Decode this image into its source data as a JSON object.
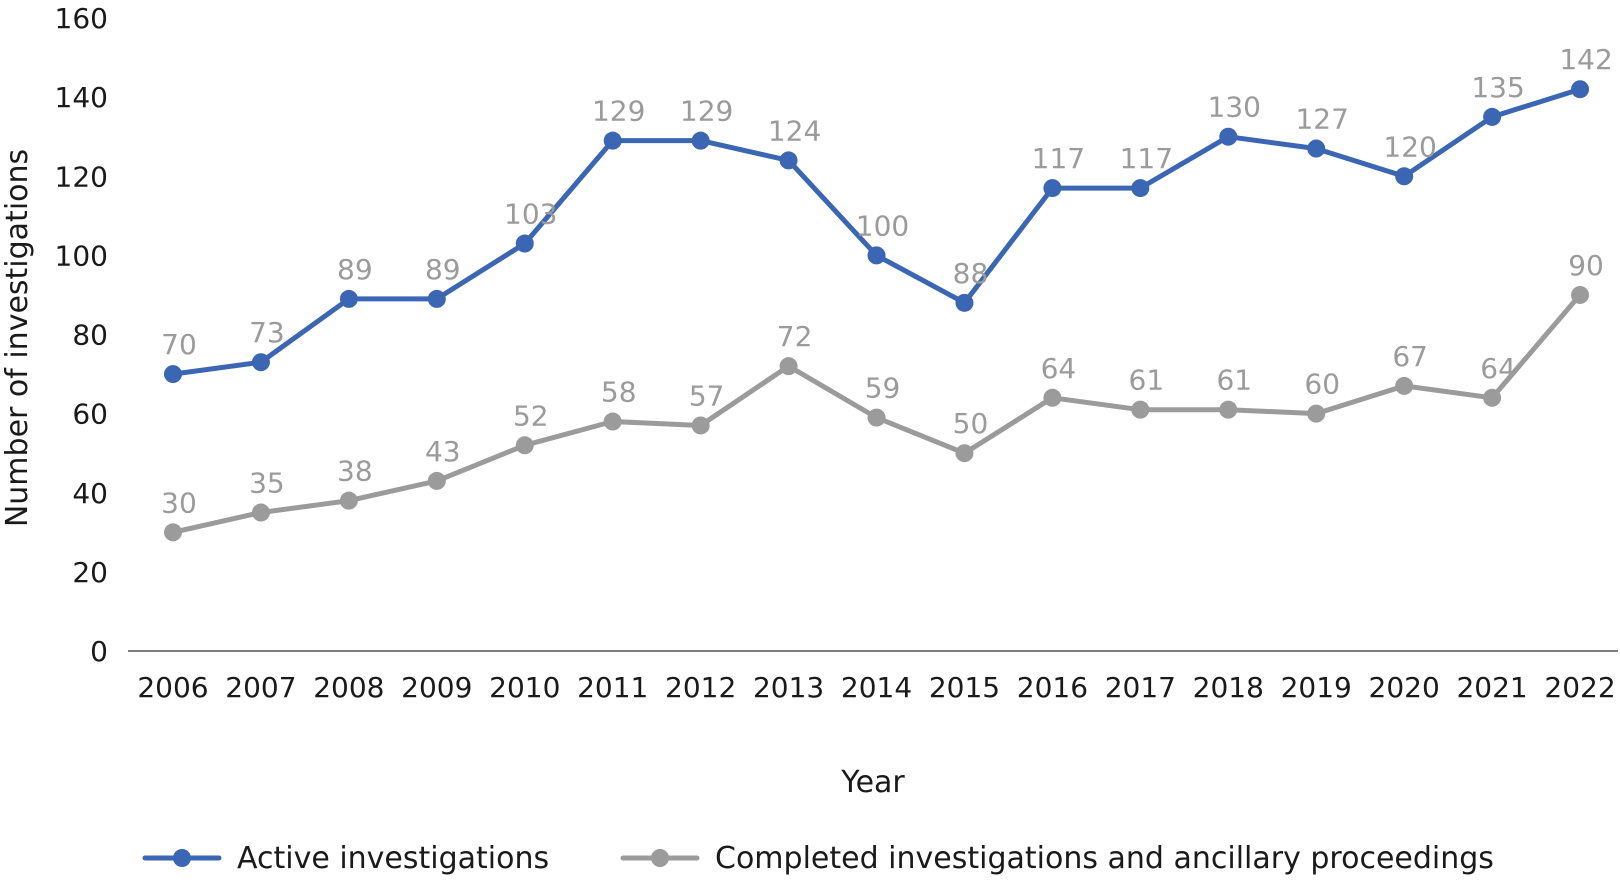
{
  "chart_data": {
    "type": "line",
    "xlabel": "Year",
    "ylabel": "Number of investigations",
    "ylim": [
      0,
      160
    ],
    "yticks": [
      0,
      20,
      40,
      60,
      80,
      100,
      120,
      140,
      160
    ],
    "grid": false,
    "legend_position": "bottom",
    "x": [
      "2006",
      "2007",
      "2008",
      "2009",
      "2010",
      "2011",
      "2012",
      "2013",
      "2014",
      "2015",
      "2016",
      "2017",
      "2018",
      "2019",
      "2020",
      "2021",
      "2022"
    ],
    "series": [
      {
        "name": "Active investigations",
        "color": "#3a66b3",
        "values": [
          70,
          73,
          89,
          89,
          103,
          129,
          129,
          124,
          100,
          88,
          117,
          117,
          130,
          127,
          120,
          135,
          142
        ]
      },
      {
        "name": "Completed investigations and ancillary proceedings",
        "color": "#9b9b9b",
        "values": [
          30,
          35,
          38,
          43,
          52,
          58,
          57,
          72,
          59,
          50,
          64,
          61,
          61,
          60,
          67,
          64,
          90
        ]
      }
    ],
    "label_color": "#9b9b9b",
    "axis_color": "#7f7f7f"
  }
}
